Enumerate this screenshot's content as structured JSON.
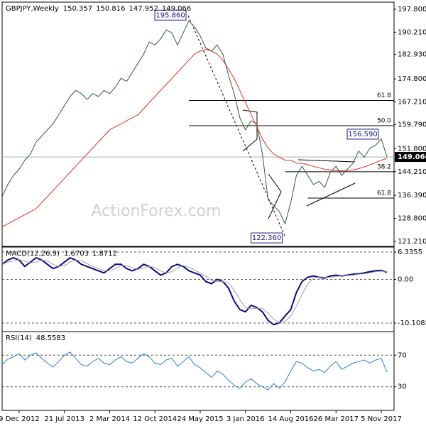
{
  "chart_data": [
    {
      "type": "line",
      "title": "GBPJPY,Weekly",
      "ohlc": [
        150.357,
        150.816,
        147.952,
        149.066
      ],
      "watermark": "ActionForex.com",
      "categories": [
        null,
        null,
        null,
        "9 Dec 2012",
        null,
        null,
        null,
        null,
        null,
        null,
        null,
        "21 Jul 2013",
        null,
        null,
        null,
        null,
        null,
        null,
        null,
        "2 Mar 2014",
        null,
        null,
        null,
        null,
        null,
        null,
        null,
        "12 Oct 2014",
        null,
        null,
        null,
        null,
        null,
        null,
        null,
        "24 May 2015",
        null,
        null,
        null,
        null,
        null,
        null,
        null,
        "3 Jan 2016",
        null,
        null,
        null,
        null,
        null,
        null,
        null,
        "14 Aug 2016",
        null,
        null,
        null,
        null,
        null,
        null,
        null,
        "26 Mar 2017",
        null,
        null,
        null,
        null,
        null,
        null,
        null,
        "5 Nov 2017",
        null
      ],
      "ylim": [
        119.57,
        200.14
      ],
      "yticks": [
        {
          "value": 197.8,
          "label": "197.800"
        },
        {
          "value": 190.21,
          "label": "190.210"
        },
        {
          "value": 182.93,
          "label": "182.930"
        },
        {
          "value": 174.8,
          "label": "174.800"
        },
        {
          "value": 167.21,
          "label": "167.210"
        },
        {
          "value": 159.79,
          "label": "159.790"
        },
        {
          "value": 151.8,
          "label": "151.800"
        },
        {
          "value": 144.21,
          "label": "144.210"
        },
        {
          "value": 136.39,
          "label": "136.390"
        },
        {
          "value": 128.8,
          "label": "128.800"
        },
        {
          "value": 121.21,
          "label": "121.210"
        }
      ],
      "series": [
        {
          "color": "#2f5e3a",
          "values": [
            136,
            140,
            143,
            145,
            148,
            150,
            154,
            156,
            158,
            160,
            163,
            166,
            169,
            171,
            170,
            168,
            170,
            169,
            171,
            170,
            172,
            175,
            174,
            177,
            180,
            183,
            187,
            186,
            188,
            191,
            190,
            186,
            190,
            194,
            192,
            189,
            185,
            184,
            186,
            183,
            176,
            170,
            162,
            158,
            161,
            160,
            150,
            135,
            133,
            131,
            127,
            134,
            143,
            146,
            143,
            140,
            141,
            139,
            144,
            146,
            143,
            145,
            147,
            151,
            149,
            152,
            153,
            155,
            149.1
          ]
        },
        {
          "color": "#e0302a",
          "values": [
            126,
            127,
            128,
            129,
            130,
            131,
            132,
            134,
            136,
            138,
            140,
            142,
            144,
            146,
            148,
            150,
            152,
            154,
            156,
            158,
            159,
            160,
            161,
            162,
            163,
            165,
            167,
            169,
            171,
            173,
            175,
            177,
            179,
            181,
            183,
            184,
            184.5,
            184,
            183,
            181,
            178,
            175,
            171,
            167,
            163,
            159,
            155,
            152,
            150,
            149,
            148,
            148,
            147,
            147,
            146.5,
            146,
            145.5,
            145,
            144.8,
            144.6,
            144.5,
            144.6,
            144.8,
            145.2,
            145.8,
            146.5,
            147.2,
            148,
            148.6
          ]
        }
      ],
      "fib_levels": [
        {
          "label": "61.8",
          "value": 167.7,
          "from": 33
        },
        {
          "label": "50.0",
          "value": 159.4,
          "from": 33
        },
        {
          "label": "38.2",
          "value": 144.2,
          "from": 50
        },
        {
          "label": "61.8",
          "value": 135.5,
          "from": 54
        }
      ],
      "annotations": [
        {
          "label": "195.860",
          "value": 195.86,
          "index": 33
        },
        {
          "label": "156.590",
          "value": 156.59,
          "index": 67
        },
        {
          "label": "122.360",
          "value": 122.36,
          "index": 50
        }
      ]
    },
    {
      "type": "line",
      "title": "MACD(12,26,9)",
      "readings": [
        1.6703,
        1.8712
      ],
      "ylim": [
        -12.08,
        7.49
      ],
      "yticks": [
        6.3355,
        {
          "value": 0,
          "label": "0.00"
        },
        -10.1082
      ],
      "series": [
        {
          "color": "#0a0a80",
          "values": [
            3.5,
            4.5,
            5,
            4.5,
            3,
            4,
            5,
            4.5,
            3.5,
            2.5,
            3,
            4,
            5,
            4.5,
            3.5,
            3,
            2.5,
            2,
            1.5,
            2.5,
            3.5,
            3.5,
            2.5,
            2,
            2.5,
            3.5,
            3,
            2,
            1,
            1.5,
            3,
            3.5,
            3,
            2,
            1.5,
            1,
            -0.5,
            -1,
            0,
            -0.5,
            -2,
            -5,
            -7,
            -7.5,
            -6,
            -6.5,
            -7.5,
            -9.5,
            -10.5,
            -10,
            -8.5,
            -7,
            -3,
            -0.5,
            0.5,
            0.8,
            0.5,
            0.3,
            0.8,
            1,
            0.8,
            1,
            1.2,
            1.3,
            1.5,
            1.8,
            2,
            2.1,
            1.67
          ]
        },
        {
          "color": "#a0a0a0",
          "values": [
            3.5,
            4,
            4.3,
            4.6,
            4.2,
            3.8,
            4,
            4.5,
            4.3,
            3.5,
            3,
            3.2,
            4,
            4.5,
            4.3,
            3.7,
            3,
            2.5,
            2,
            2,
            2.5,
            3.2,
            3.2,
            2.7,
            2.3,
            2.7,
            3,
            2.8,
            2,
            1.5,
            1.8,
            2.7,
            3.2,
            2.8,
            2.2,
            1.5,
            0.7,
            -0.2,
            -0.5,
            -0.5,
            -0.8,
            -2.5,
            -4.7,
            -6.5,
            -6.8,
            -6.7,
            -6.7,
            -7.8,
            -9.2,
            -10,
            -9.7,
            -8.5,
            -6.2,
            -3.5,
            -1.1,
            0.3,
            0.6,
            0.5,
            0.5,
            0.7,
            0.8,
            0.9,
            1,
            1.2,
            1.3,
            1.5,
            1.8,
            1.9,
            1.87
          ]
        }
      ]
    },
    {
      "type": "line",
      "title": "RSI(14)",
      "readings": [
        48.5583
      ],
      "ylim": [
        0,
        100
      ],
      "yticks": [
        70,
        30
      ],
      "series": [
        {
          "color": "#2a7fd4",
          "values": [
            58,
            65,
            68,
            72,
            64,
            70,
            73,
            66,
            60,
            55,
            62,
            70,
            74,
            66,
            58,
            56,
            62,
            66,
            60,
            58,
            64,
            68,
            62,
            60,
            66,
            72,
            68,
            60,
            58,
            64,
            66,
            56,
            62,
            68,
            58,
            54,
            48,
            42,
            50,
            46,
            38,
            32,
            28,
            36,
            40,
            34,
            30,
            26,
            34,
            28,
            36,
            50,
            62,
            60,
            54,
            50,
            52,
            48,
            56,
            62,
            52,
            56,
            60,
            62,
            64,
            60,
            64,
            66,
            48.56
          ]
        }
      ]
    }
  ]
}
